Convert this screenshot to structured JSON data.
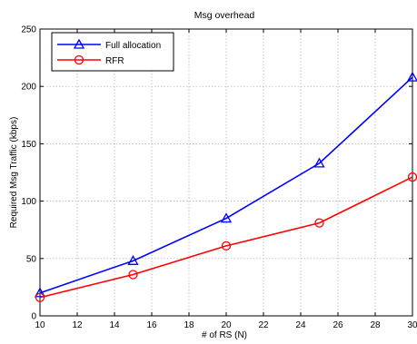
{
  "chart_data": {
    "type": "line",
    "title": "Msg overhead",
    "xlabel": "# of RS (N)",
    "ylabel": "Required Msg Traffic (kbps)",
    "xlim": [
      10,
      30
    ],
    "ylim": [
      0,
      250
    ],
    "xticks": [
      10,
      12,
      14,
      16,
      18,
      20,
      22,
      24,
      26,
      28,
      30
    ],
    "yticks": [
      0,
      50,
      100,
      150,
      200,
      250
    ],
    "grid": true,
    "legend_position": "top-left",
    "series": [
      {
        "name": "Full allocation",
        "color": "#0000ff",
        "marker": "triangle",
        "points": [
          {
            "x": 10,
            "y": 20
          },
          {
            "x": 15,
            "y": 48
          },
          {
            "x": 20,
            "y": 85
          },
          {
            "x": 25,
            "y": 133
          },
          {
            "x": 30,
            "y": 208
          }
        ]
      },
      {
        "name": "RFR",
        "color": "#ff0000",
        "marker": "circle",
        "points": [
          {
            "x": 10,
            "y": 16
          },
          {
            "x": 15,
            "y": 36
          },
          {
            "x": 20,
            "y": 61
          },
          {
            "x": 25,
            "y": 81
          },
          {
            "x": 30,
            "y": 121
          }
        ]
      }
    ]
  }
}
